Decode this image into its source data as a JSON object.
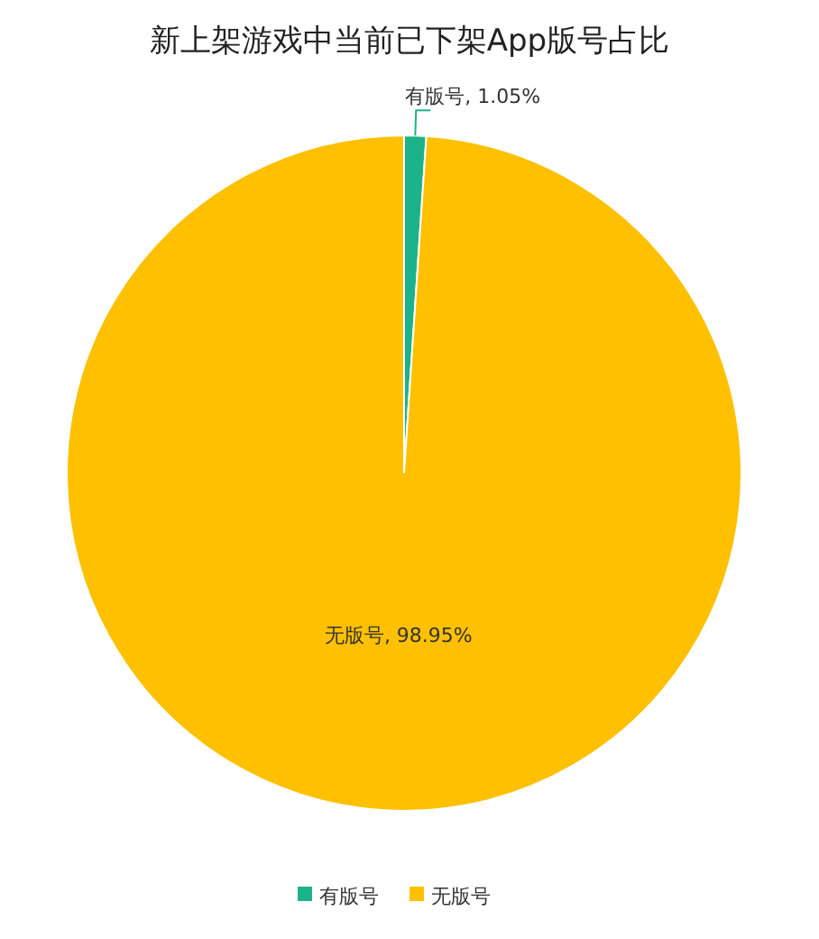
{
  "chart_data": {
    "type": "pie",
    "title": "新上架游戏中当前已下架App版号占比",
    "categories": [
      "有版号",
      "无版号"
    ],
    "values": [
      1.05,
      98.95
    ],
    "colors": [
      "#1db38a",
      "#ffc000"
    ],
    "value_labels": [
      "有版号, 1.05%",
      "无版号, 98.95%"
    ],
    "legend": "bottom"
  }
}
